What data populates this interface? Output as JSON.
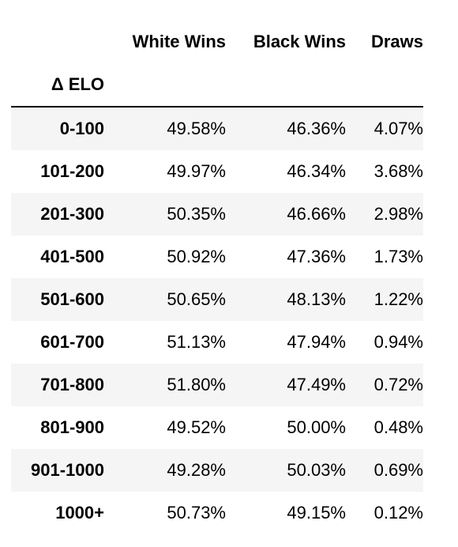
{
  "table": {
    "columns": [
      "White Wins",
      "Black Wins",
      "Draws"
    ],
    "index_name": "Δ ELO",
    "rows": [
      {
        "label": "0-100",
        "values": [
          "49.58%",
          "46.36%",
          "4.07%"
        ]
      },
      {
        "label": "101-200",
        "values": [
          "49.97%",
          "46.34%",
          "3.68%"
        ]
      },
      {
        "label": "201-300",
        "values": [
          "50.35%",
          "46.66%",
          "2.98%"
        ]
      },
      {
        "label": "401-500",
        "values": [
          "50.92%",
          "47.36%",
          "1.73%"
        ]
      },
      {
        "label": "501-600",
        "values": [
          "50.65%",
          "48.13%",
          "1.22%"
        ]
      },
      {
        "label": "601-700",
        "values": [
          "51.13%",
          "47.94%",
          "0.94%"
        ]
      },
      {
        "label": "701-800",
        "values": [
          "51.80%",
          "47.49%",
          "0.72%"
        ]
      },
      {
        "label": "801-900",
        "values": [
          "49.52%",
          "50.00%",
          "0.48%"
        ]
      },
      {
        "label": "901-1000",
        "values": [
          "49.28%",
          "50.03%",
          "0.69%"
        ]
      },
      {
        "label": "1000+",
        "values": [
          "50.73%",
          "49.15%",
          "0.12%"
        ]
      }
    ]
  },
  "colors": {
    "striped_row": "#f5f5f5",
    "plain_row": "#ffffff",
    "header_rule": "#000000",
    "text": "#000000"
  }
}
